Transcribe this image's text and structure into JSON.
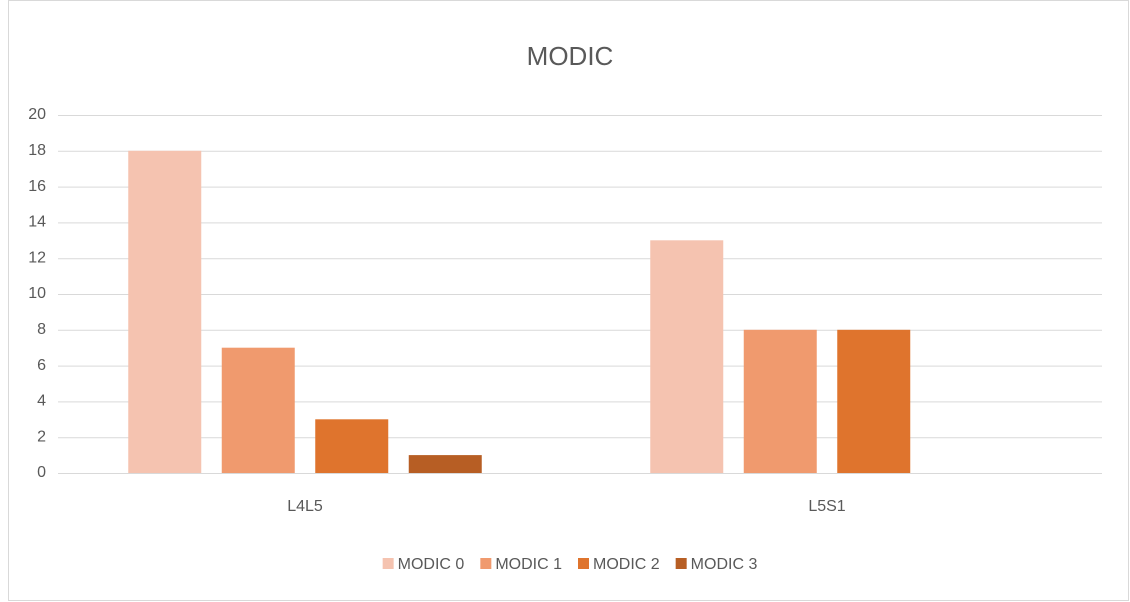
{
  "chart_data": {
    "type": "bar",
    "title": "MODIC",
    "categories": [
      "L4L5",
      "L5S1"
    ],
    "series": [
      {
        "name": "MODIC 0",
        "color": "#f5c3b0",
        "values": [
          18,
          13
        ]
      },
      {
        "name": "MODIC 1",
        "color": "#f09a6e",
        "values": [
          7,
          8
        ]
      },
      {
        "name": "MODIC 2",
        "color": "#df742d",
        "values": [
          3,
          8
        ]
      },
      {
        "name": "MODIC 3",
        "color": "#b75e24",
        "values": [
          1,
          0
        ]
      }
    ],
    "ylim": [
      0,
      20
    ],
    "yticks": [
      0,
      2,
      4,
      6,
      8,
      10,
      12,
      14,
      16,
      18,
      20
    ],
    "grid": true,
    "legend": "bottom"
  }
}
